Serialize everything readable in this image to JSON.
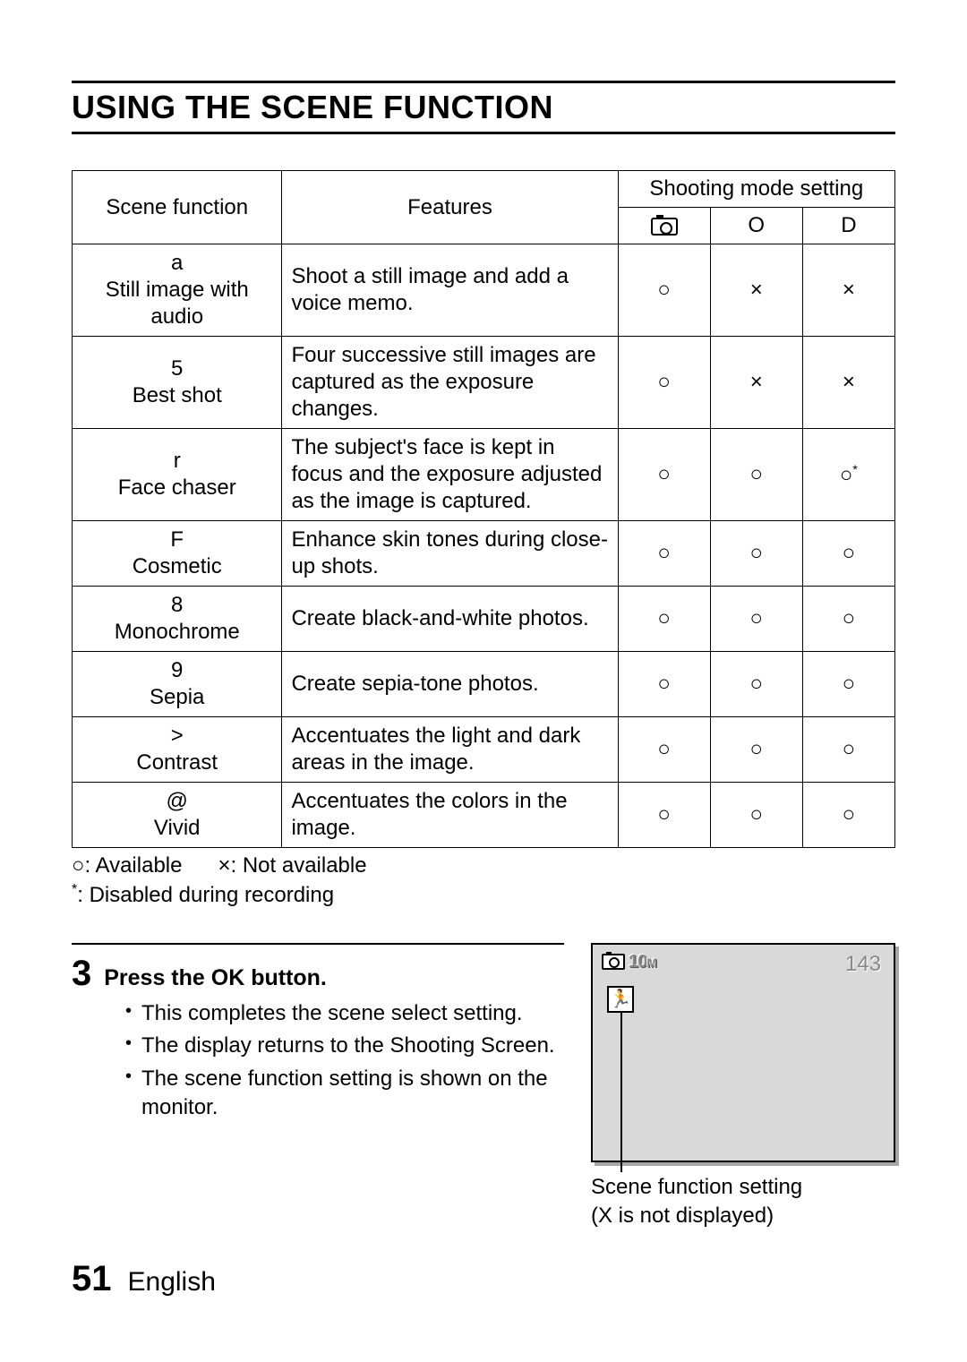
{
  "title": "USING THE SCENE FUNCTION",
  "table": {
    "headers": {
      "scene_function": "Scene function",
      "features": "Features",
      "shooting_mode": "Shooting mode setting",
      "mode2": "O",
      "mode3": "D"
    },
    "rows": [
      {
        "symbol": "a",
        "name": "Still image with audio",
        "feature": "Shoot a still image and add a voice memo.",
        "m1": "○",
        "m2": "×",
        "m3": "×"
      },
      {
        "symbol": "5",
        "name": "Best shot",
        "feature": "Four successive still images are captured as the exposure changes.",
        "m1": "○",
        "m2": "×",
        "m3": "×"
      },
      {
        "symbol": "r",
        "name": "Face chaser",
        "feature": "The subject's face is kept in focus and the exposure adjusted as the image is captured.",
        "m1": "○",
        "m2": "○",
        "m3": "○*"
      },
      {
        "symbol": "F",
        "name": "Cosmetic",
        "feature": "Enhance skin tones during close-up shots.",
        "m1": "○",
        "m2": "○",
        "m3": "○"
      },
      {
        "symbol": "8",
        "name": "Monochrome",
        "feature": "Create black-and-white photos.",
        "m1": "○",
        "m2": "○",
        "m3": "○"
      },
      {
        "symbol": "9",
        "name": "Sepia",
        "feature": "Create sepia-tone photos.",
        "m1": "○",
        "m2": "○",
        "m3": "○"
      },
      {
        "symbol": ">",
        "name": "Contrast",
        "feature": "Accentuates the light and dark areas in the image.",
        "m1": "○",
        "m2": "○",
        "m3": "○"
      },
      {
        "symbol": "@",
        "name": "Vivid",
        "feature": "Accentuates the colors in the image.",
        "m1": "○",
        "m2": "○",
        "m3": "○"
      }
    ]
  },
  "legend": {
    "available": "○: Available",
    "not_available": "×: Not available",
    "disabled": ":  Disabled during recording",
    "star": "*"
  },
  "step": {
    "number": "3",
    "heading": "Press the OK button.",
    "bullets": [
      "This completes the scene select setting.",
      "The display returns to the Shooting Screen.",
      "The scene function setting is shown on the monitor."
    ]
  },
  "screen": {
    "res_big": "10",
    "res_small": "M",
    "counter": "143",
    "caption_line1": "Scene function setting",
    "caption_line2": "(X      is not displayed)"
  },
  "footer": {
    "page": "51",
    "language": "English"
  },
  "colors": {
    "page_bg": "#ffffff",
    "text": "#000000",
    "screen_bg": "#d9d9d9",
    "screen_text_gray": "#888888"
  }
}
